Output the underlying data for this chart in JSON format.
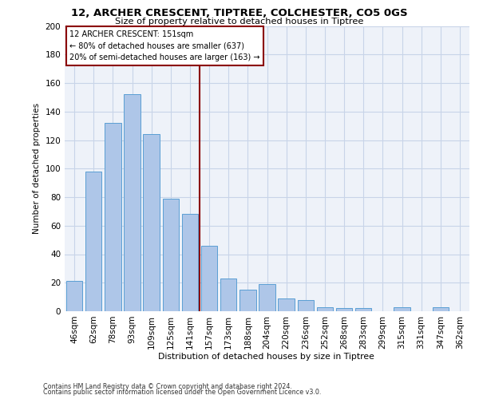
{
  "title_line1": "12, ARCHER CRESCENT, TIPTREE, COLCHESTER, CO5 0GS",
  "title_line2": "Size of property relative to detached houses in Tiptree",
  "xlabel": "Distribution of detached houses by size in Tiptree",
  "ylabel": "Number of detached properties",
  "categories": [
    "46sqm",
    "62sqm",
    "78sqm",
    "93sqm",
    "109sqm",
    "125sqm",
    "141sqm",
    "157sqm",
    "173sqm",
    "188sqm",
    "204sqm",
    "220sqm",
    "236sqm",
    "252sqm",
    "268sqm",
    "283sqm",
    "299sqm",
    "315sqm",
    "331sqm",
    "347sqm",
    "362sqm"
  ],
  "values": [
    21,
    98,
    132,
    152,
    124,
    79,
    68,
    46,
    23,
    15,
    19,
    9,
    8,
    3,
    2,
    2,
    0,
    3,
    0,
    3,
    0
  ],
  "bar_color": "#aec6e8",
  "bar_edge_color": "#5a9fd4",
  "vline_x": 6.5,
  "vline_color": "#8b0000",
  "annotation_text": "12 ARCHER CRESCENT: 151sqm\n← 80% of detached houses are smaller (637)\n20% of semi-detached houses are larger (163) →",
  "annotation_box_edgecolor": "#8b0000",
  "ylim": [
    0,
    200
  ],
  "yticks": [
    0,
    20,
    40,
    60,
    80,
    100,
    120,
    140,
    160,
    180,
    200
  ],
  "grid_color": "#c8d4e8",
  "background_color": "#eef2f9",
  "footer_line1": "Contains HM Land Registry data © Crown copyright and database right 2024.",
  "footer_line2": "Contains public sector information licensed under the Open Government Licence v3.0."
}
